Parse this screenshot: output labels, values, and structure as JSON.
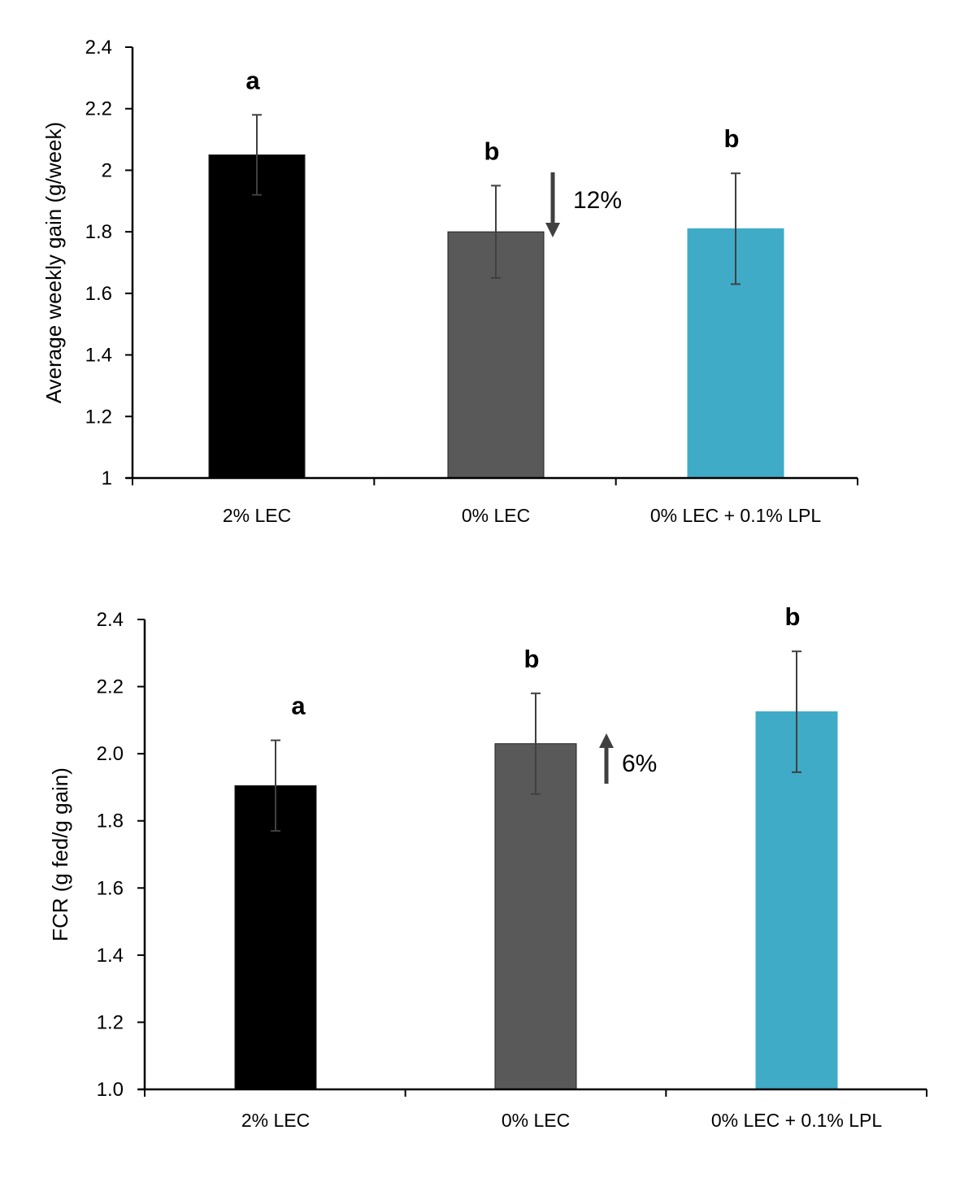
{
  "chart_data": [
    {
      "type": "bar",
      "title": "",
      "xlabel": "",
      "ylabel": "Average weekly gain  (g/week)",
      "ylim": [
        1,
        2.4
      ],
      "yticks": [
        1,
        1.2,
        1.4,
        1.6,
        1.8,
        2,
        2.2,
        2.4
      ],
      "ytick_labels": [
        "1",
        "1.2",
        "1.4",
        "1.6",
        "1.8",
        "2",
        "2.2",
        "2.4"
      ],
      "categories": [
        "2% LEC",
        "0% LEC",
        "0% LEC + 0.1% LPL"
      ],
      "values": [
        2.05,
        1.8,
        1.81
      ],
      "errors": [
        0.13,
        0.15,
        0.18
      ],
      "colors": [
        "#000000",
        "#595959",
        "#3fabc7"
      ],
      "significance": [
        "a",
        "b",
        "b"
      ],
      "annotation": {
        "bar_index": 1,
        "direction": "down",
        "text": "12%"
      }
    },
    {
      "type": "bar",
      "title": "",
      "xlabel": "",
      "ylabel": "FCR (g fed/g gain)",
      "ylim": [
        1.0,
        2.4
      ],
      "yticks": [
        1.0,
        1.2,
        1.4,
        1.6,
        1.8,
        2.0,
        2.2,
        2.4
      ],
      "ytick_labels": [
        "1.0",
        "1.2",
        "1.4",
        "1.6",
        "1.8",
        "2.0",
        "2.2",
        "2.4"
      ],
      "categories": [
        "2% LEC",
        "0% LEC",
        "0% LEC + 0.1% LPL"
      ],
      "values": [
        1.905,
        2.03,
        2.125
      ],
      "errors": [
        0.135,
        0.15,
        0.18
      ],
      "colors": [
        "#000000",
        "#595959",
        "#3fabc7"
      ],
      "significance": [
        "a",
        "b",
        "b"
      ],
      "annotation": {
        "bar_index": 1,
        "direction": "up",
        "text": "6%"
      }
    }
  ]
}
